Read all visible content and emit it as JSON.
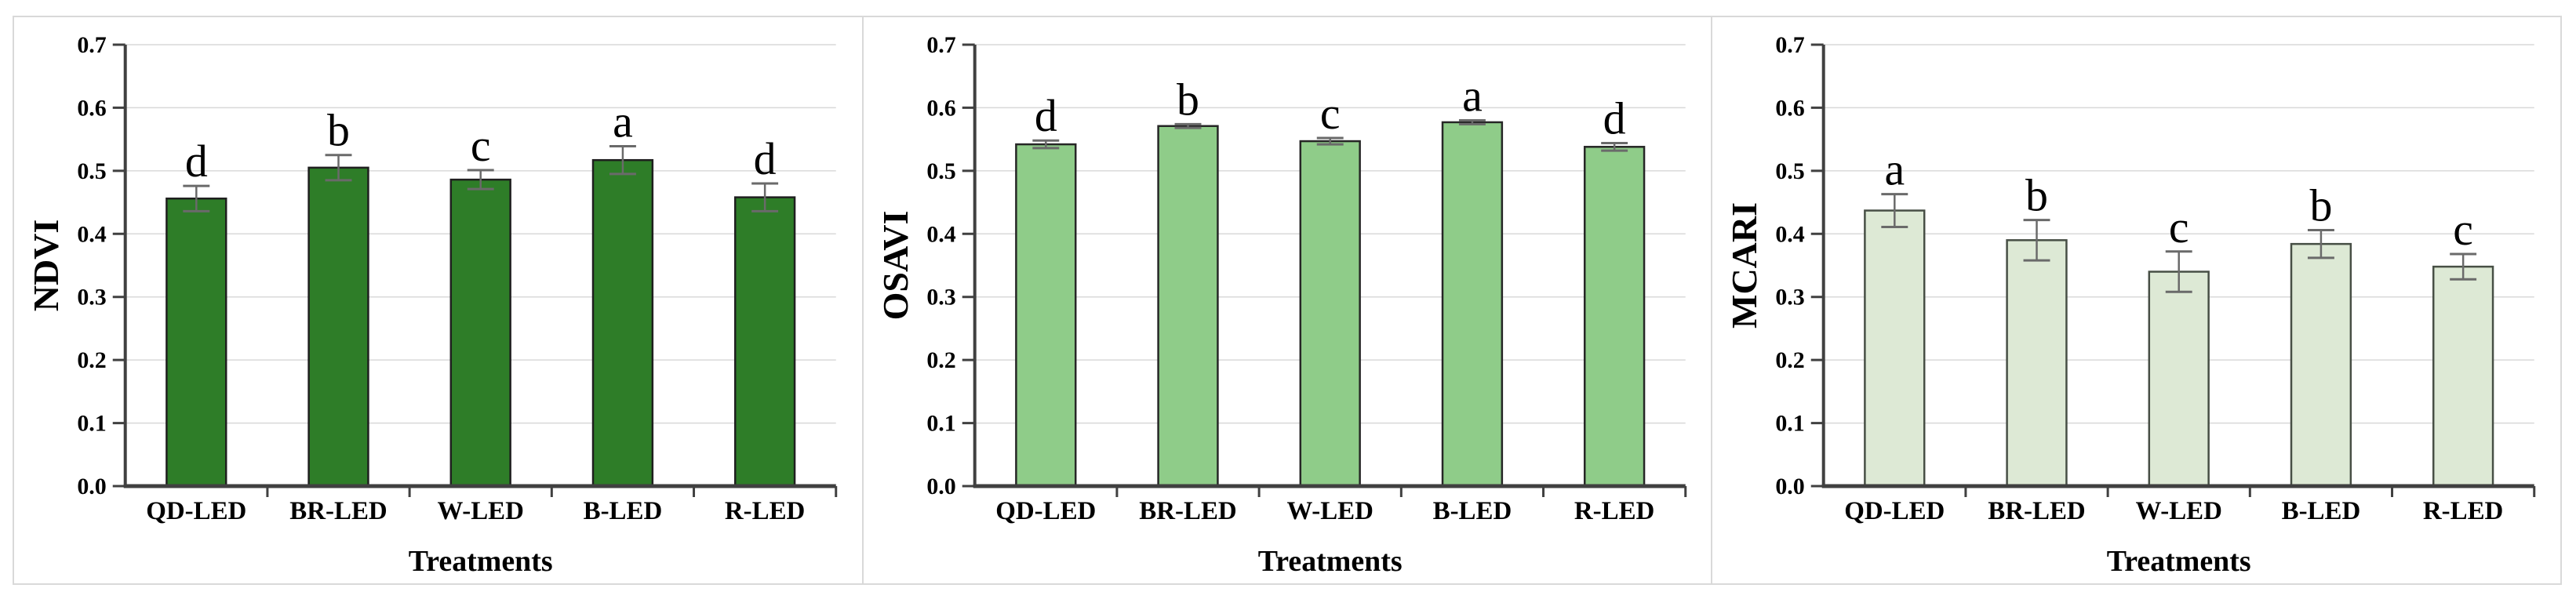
{
  "figure": {
    "description": "Three-panel bar figure of vegetation indices under five LED treatments",
    "panels": [
      "NDVI",
      "OSAVI",
      "MCARI"
    ],
    "categories": [
      "QD-LED",
      "BR-LED",
      "W-LED",
      "B-LED",
      "R-LED"
    ],
    "xlabel": "Treatments",
    "y_ticks": [
      "0.0",
      "0.1",
      "0.2",
      "0.3",
      "0.4",
      "0.5",
      "0.6",
      "0.7"
    ]
  },
  "chart_data": [
    {
      "type": "bar",
      "title": "",
      "ylabel": "NDVI",
      "xlabel": "Treatments",
      "categories": [
        "QD-LED",
        "BR-LED",
        "W-LED",
        "B-LED",
        "R-LED"
      ],
      "values": [
        0.456,
        0.505,
        0.486,
        0.517,
        0.458
      ],
      "errors": [
        0.02,
        0.02,
        0.015,
        0.022,
        0.022
      ],
      "sig_letters": [
        "d",
        "b",
        "c",
        "a",
        "d"
      ],
      "bar_color": "#2e7d28",
      "bar_stroke": "#1f1f1f",
      "ylim": [
        0,
        0.7
      ],
      "ytick_step": 0.1,
      "ytick_decimals": 1,
      "grid": true,
      "legend": "none"
    },
    {
      "type": "bar",
      "title": "",
      "ylabel": "OSAVI",
      "xlabel": "Treatments",
      "categories": [
        "QD-LED",
        "BR-LED",
        "W-LED",
        "B-LED",
        "R-LED"
      ],
      "values": [
        0.542,
        0.571,
        0.547,
        0.577,
        0.538
      ],
      "errors": [
        0.006,
        0.003,
        0.005,
        0.003,
        0.006
      ],
      "sig_letters": [
        "d",
        "b",
        "c",
        "a",
        "d"
      ],
      "bar_color": "#8fcc89",
      "bar_stroke": "#262626",
      "ylim": [
        0,
        0.7
      ],
      "ytick_step": 0.1,
      "ytick_decimals": 1,
      "grid": true,
      "legend": "none"
    },
    {
      "type": "bar",
      "title": "",
      "ylabel": "MCARI",
      "xlabel": "Treatments",
      "categories": [
        "QD-LED",
        "BR-LED",
        "W-LED",
        "B-LED",
        "R-LED"
      ],
      "values": [
        0.437,
        0.39,
        0.34,
        0.384,
        0.348
      ],
      "errors": [
        0.026,
        0.032,
        0.032,
        0.022,
        0.02
      ],
      "sig_letters": [
        "a",
        "b",
        "c",
        "b",
        "c"
      ],
      "bar_color": "#dde9d5",
      "bar_stroke": "#474f45",
      "ylim": [
        0,
        0.7
      ],
      "ytick_step": 0.1,
      "ytick_decimals": 1,
      "grid": true,
      "legend": "none"
    }
  ],
  "colors": {
    "grid": "#d9d9d9",
    "axis": "#404040",
    "error_bar": "#6a6a6a",
    "panel_border": "#d9d9d9",
    "background": "#ffffff",
    "text": "#000000"
  }
}
